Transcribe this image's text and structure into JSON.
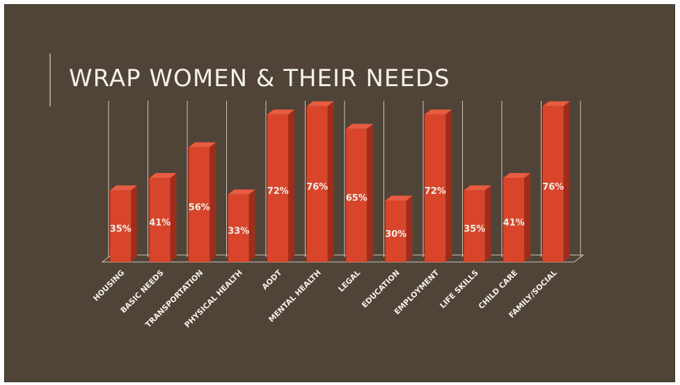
{
  "slide": {
    "title": "WRAP WOMEN & THEIR NEEDS"
  },
  "colors": {
    "background": "#4f4437",
    "bar_front": "#d8452b",
    "bar_side": "#a22c19",
    "bar_top": "#e85c42",
    "grid": "#cfc6b8",
    "text": "#f4f1ea"
  },
  "chart_data": {
    "type": "bar",
    "title": "WRAP WOMEN & THEIR NEEDS",
    "categories": [
      "HOUSING",
      "BASIC NEEDS",
      "TRANSPORTATION",
      "PHYSICAL HEALTH",
      "AODT",
      "MENTAL HEALTH",
      "LEGAL",
      "EDUCATION",
      "EMPLOYMENT",
      "LIFE SKILLS",
      "CHILD CARE",
      "FAMILY/SOCIAL"
    ],
    "values": [
      35,
      41,
      56,
      33,
      72,
      76,
      65,
      30,
      72,
      35,
      41,
      76
    ],
    "data_labels": [
      "35%",
      "41%",
      "56%",
      "33%",
      "72%",
      "76%",
      "65%",
      "30%",
      "72%",
      "35%",
      "41%",
      "76%"
    ],
    "ylim": [
      0,
      80
    ],
    "xlabel": "",
    "ylabel": "",
    "grid": true,
    "style": "3d-column",
    "legend": "none"
  }
}
